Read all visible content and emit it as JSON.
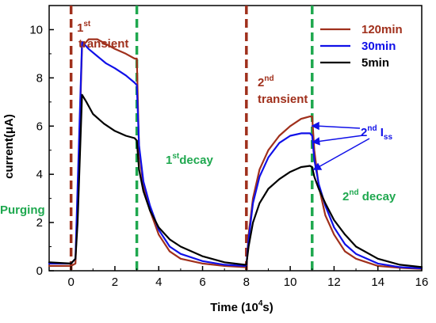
{
  "chart_data": {
    "type": "line",
    "title": "",
    "xlabel": "Time (10",
    "xlabel_sup": "4",
    "xlabel_end": "s)",
    "ylabel": "current(μA)",
    "xlim": [
      -1,
      16
    ],
    "ylim": [
      0,
      11
    ],
    "xticks": [
      0,
      2,
      4,
      6,
      8,
      10,
      12,
      14,
      16
    ],
    "yticks": [
      0,
      2,
      4,
      6,
      8,
      10
    ],
    "grid": false,
    "legend_position": "top-right",
    "series": [
      {
        "name": "120min",
        "color": "#a0301c",
        "x": [
          -1,
          0,
          0.2,
          0.3,
          0.5,
          0.8,
          1.2,
          1.6,
          2.0,
          2.5,
          2.9,
          3.0,
          3.1,
          3.3,
          3.6,
          4.0,
          4.5,
          5.0,
          6.0,
          7.0,
          7.9,
          8.0,
          8.1,
          8.3,
          8.6,
          9.0,
          9.5,
          10.0,
          10.5,
          10.9,
          11.0,
          11.1,
          11.3,
          11.6,
          12.0,
          12.5,
          13.0,
          14.0,
          15.0,
          16.0
        ],
        "y": [
          0.2,
          0.2,
          0.3,
          3.0,
          9.3,
          9.6,
          9.6,
          9.4,
          9.2,
          9.0,
          8.8,
          8.8,
          5.0,
          3.5,
          2.5,
          1.5,
          0.8,
          0.5,
          0.3,
          0.2,
          0.15,
          0.15,
          1.5,
          3.0,
          4.2,
          5.0,
          5.6,
          6.0,
          6.3,
          6.4,
          6.4,
          5.0,
          3.5,
          2.3,
          1.5,
          0.8,
          0.5,
          0.2,
          0.12,
          0.08
        ]
      },
      {
        "name": "30min",
        "color": "#1010e8",
        "x": [
          -1,
          0,
          0.2,
          0.3,
          0.5,
          0.8,
          1.2,
          1.6,
          2.0,
          2.5,
          2.9,
          3.0,
          3.1,
          3.3,
          3.6,
          4.0,
          4.5,
          5.0,
          6.0,
          7.0,
          7.9,
          8.0,
          8.1,
          8.3,
          8.6,
          9.0,
          9.5,
          10.0,
          10.5,
          10.9,
          11.0,
          11.1,
          11.3,
          11.6,
          12.0,
          12.5,
          13.0,
          14.0,
          15.0,
          16.0
        ],
        "y": [
          0.3,
          0.3,
          0.5,
          3.5,
          9.5,
          9.2,
          8.9,
          8.6,
          8.4,
          8.1,
          7.8,
          7.7,
          5.2,
          3.7,
          2.7,
          1.7,
          1.0,
          0.7,
          0.4,
          0.25,
          0.2,
          0.2,
          1.3,
          2.8,
          3.9,
          4.7,
          5.3,
          5.6,
          5.7,
          5.7,
          5.6,
          4.6,
          3.6,
          2.7,
          1.8,
          1.1,
          0.7,
          0.3,
          0.15,
          0.1
        ]
      },
      {
        "name": "5min",
        "color": "#000000",
        "x": [
          -1,
          0,
          0.2,
          0.3,
          0.5,
          0.7,
          1.0,
          1.5,
          2.0,
          2.5,
          2.9,
          3.0,
          3.1,
          3.3,
          3.6,
          4.0,
          4.5,
          5.0,
          6.0,
          7.0,
          7.9,
          8.0,
          8.1,
          8.3,
          8.6,
          9.0,
          9.5,
          10.0,
          10.5,
          10.9,
          11.0,
          11.1,
          11.3,
          11.6,
          12.0,
          12.5,
          13.0,
          14.0,
          15.0,
          16.0
        ],
        "y": [
          0.35,
          0.3,
          0.5,
          2.0,
          7.3,
          7.0,
          6.5,
          6.1,
          5.8,
          5.6,
          5.5,
          5.4,
          4.2,
          3.3,
          2.5,
          1.8,
          1.3,
          1.0,
          0.6,
          0.35,
          0.25,
          0.25,
          1.0,
          2.0,
          2.8,
          3.4,
          3.8,
          4.1,
          4.3,
          4.35,
          4.3,
          3.9,
          3.4,
          2.8,
          2.1,
          1.5,
          1.0,
          0.5,
          0.25,
          0.15
        ]
      }
    ],
    "vlines": [
      {
        "x": 0,
        "color": "#a0301c"
      },
      {
        "x": 3,
        "color": "#1fa84f"
      },
      {
        "x": 8,
        "color": "#a0301c"
      },
      {
        "x": 11,
        "color": "#1fa84f"
      }
    ],
    "annotations": {
      "first_transient_ord": "1",
      "first_transient_sup": "st",
      "first_transient_word": "transient",
      "first_decay_ord": "1",
      "first_decay_sup": "st",
      "first_decay_word": "decay",
      "purging": "Purging",
      "second_transient_ord": "2",
      "second_transient_sup": "nd",
      "second_transient_word": "transient",
      "second_decay_ord": "2",
      "second_decay_sup": "nd",
      "second_decay_word": " decay",
      "iss_ord": "2",
      "iss_sup": "nd",
      "iss_word": " I",
      "iss_sub": "ss"
    },
    "annotation_colors": {
      "red": "#a0301c",
      "green": "#1fa84f",
      "blue": "#1010e8"
    }
  }
}
